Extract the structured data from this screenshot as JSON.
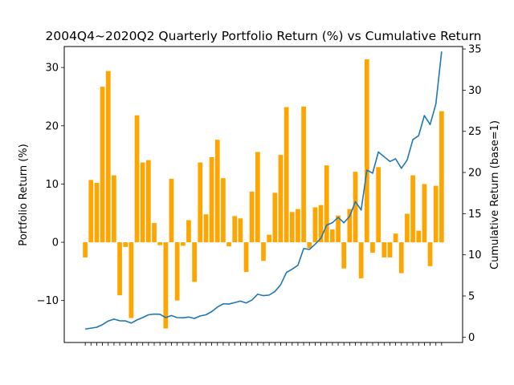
{
  "chart_data": {
    "type": "bar+line",
    "title": "2004Q4~2020Q2 Quarterly Portfolio Return (%) vs Cumulative Return",
    "ylabel_left": "Portfolio Return (%)",
    "ylabel_right": "Cumulative Return (base=1)",
    "xlabel": "",
    "x_tick_labels_visible": false,
    "ylim_left": [
      -17.2,
      33.6
    ],
    "ylim_right": [
      -0.65,
      35.3
    ],
    "yticks_left": [
      -10,
      0,
      10,
      20,
      30
    ],
    "yticks_right": [
      0,
      5,
      10,
      15,
      20,
      25,
      30,
      35
    ],
    "grid": false,
    "legend": "none",
    "colors": {
      "bars": "#ffa500",
      "line": "#1f77b4"
    },
    "series": [
      {
        "kind": "bar",
        "axis": "left",
        "values": [
          -2.6,
          10.7,
          10.2,
          26.7,
          29.4,
          11.5,
          -9.1,
          -0.8,
          -13.0,
          21.8,
          13.7,
          14.1,
          3.3,
          -0.5,
          -14.8,
          10.9,
          -10.0,
          -0.6,
          3.8,
          -6.8,
          13.7,
          4.8,
          14.6,
          17.6,
          11.0,
          -0.7,
          4.5,
          4.1,
          -5.1,
          8.7,
          15.5,
          -3.2,
          1.3,
          8.5,
          15.0,
          23.2,
          5.2,
          5.7,
          23.3,
          -1.0,
          6.0,
          6.4,
          13.2,
          2.2,
          4.6,
          -4.5,
          5.7,
          12.1,
          -6.2,
          31.4,
          -1.8,
          12.9,
          -2.6,
          -2.6,
          1.5,
          -5.3,
          4.9,
          11.5,
          2.0,
          10.0,
          -4.1,
          9.7,
          22.5
        ]
      },
      {
        "kind": "line",
        "axis": "right",
        "values": [
          0.98,
          1.09,
          1.2,
          1.52,
          1.96,
          2.19,
          1.99,
          1.97,
          1.71,
          2.09,
          2.38,
          2.71,
          2.8,
          2.78,
          2.37,
          2.63,
          2.37,
          2.35,
          2.44,
          2.27,
          2.58,
          2.71,
          3.1,
          3.65,
          4.05,
          4.02,
          4.2,
          4.38,
          4.15,
          4.51,
          5.21,
          5.04,
          5.11,
          5.54,
          6.37,
          7.85,
          8.26,
          8.73,
          10.76,
          10.65,
          11.29,
          12.01,
          13.6,
          13.9,
          14.54,
          13.89,
          14.68,
          16.46,
          15.44,
          20.29,
          19.92,
          22.49,
          21.91,
          21.34,
          21.66,
          20.51,
          21.51,
          23.99,
          24.47,
          26.92,
          25.82,
          28.32,
          34.7
        ]
      }
    ]
  }
}
